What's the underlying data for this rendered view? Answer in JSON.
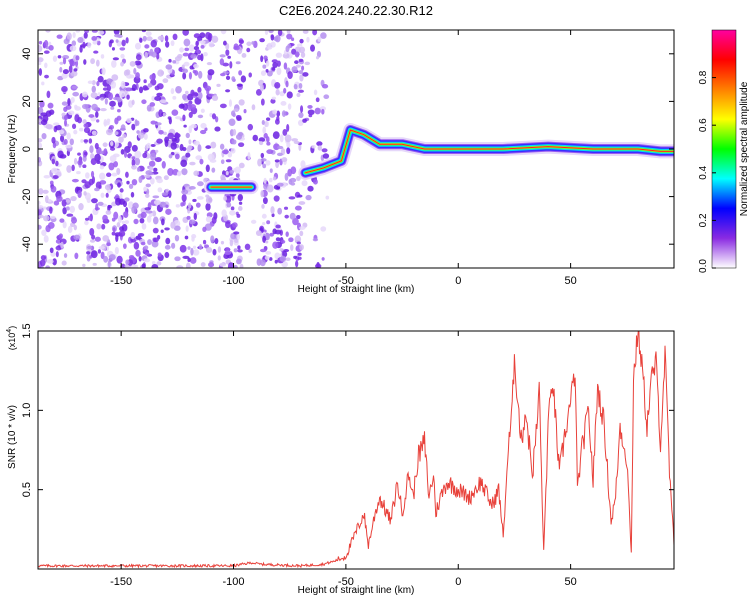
{
  "chart_data": [
    {
      "type": "heatmap",
      "title": "C2E6.2024.240.22.30.R12",
      "xlabel": "Height of straight line (km)",
      "ylabel": "Frequency (Hz)",
      "xlim": [
        -187,
        96
      ],
      "ylim": [
        -50,
        50
      ],
      "xticks": [
        -150,
        -100,
        -50,
        0,
        50
      ],
      "yticks": [
        -40,
        -20,
        0,
        20,
        40
      ],
      "grid": false,
      "noise_region_x": [
        -187,
        -68
      ],
      "noise_gap_x": [
        -96,
        -88
      ],
      "signal_track": [
        {
          "x": -110,
          "y": -16
        },
        {
          "x": -100,
          "y": -16
        },
        {
          "x": -92,
          "y": -16
        },
        {
          "x": -68,
          "y": -10
        },
        {
          "x": -60,
          "y": -8
        },
        {
          "x": -52,
          "y": -5
        },
        {
          "x": -48,
          "y": 8
        },
        {
          "x": -42,
          "y": 6
        },
        {
          "x": -35,
          "y": 2
        },
        {
          "x": -25,
          "y": 2
        },
        {
          "x": -15,
          "y": 0
        },
        {
          "x": 0,
          "y": 0
        },
        {
          "x": 20,
          "y": 0
        },
        {
          "x": 40,
          "y": 1
        },
        {
          "x": 60,
          "y": 0
        },
        {
          "x": 80,
          "y": 0
        },
        {
          "x": 90,
          "y": -1
        },
        {
          "x": 96,
          "y": -1
        }
      ],
      "colorbar": {
        "label": "Normalized spectral amplitude",
        "range": [
          0,
          1
        ],
        "ticks": [
          "0.0",
          "0.2",
          "0.4",
          "0.6",
          "0.8"
        ],
        "colors": [
          "#ffffff",
          "#8a2be2",
          "#0000ff",
          "#00ffff",
          "#00ff00",
          "#ffff00",
          "#ff8000",
          "#ff0000",
          "#ff00a0"
        ]
      }
    },
    {
      "type": "line",
      "xlabel": "Height of straight line (km)",
      "ylabel": "SNR (10 * v/v)",
      "y_multiplier": "(x10",
      "y_multiplier_exp": "4",
      "y_multiplier_close": ")",
      "xlim": [
        -187,
        96
      ],
      "ylim": [
        0,
        1.5
      ],
      "xticks": [
        -150,
        -100,
        -50,
        0,
        50
      ],
      "yticks": [
        "0.5",
        "1.0",
        "1.5"
      ],
      "color": "#e8413a",
      "grid": false,
      "x": [
        -187,
        -140,
        -100,
        -92,
        -88,
        -70,
        -60,
        -55,
        -50,
        -45,
        -42,
        -40,
        -37,
        -35,
        -30,
        -27,
        -25,
        -22,
        -20,
        -18,
        -15,
        -13,
        -11,
        -10,
        -8,
        -5,
        0,
        5,
        10,
        15,
        18,
        20,
        22,
        24,
        25,
        26,
        28,
        30,
        33,
        35,
        36,
        38,
        40,
        42,
        45,
        48,
        50,
        52,
        53,
        55,
        58,
        60,
        62,
        65,
        68,
        70,
        72,
        75,
        77,
        78,
        80,
        82,
        84,
        86,
        88,
        90,
        92,
        94,
        96
      ],
      "y": [
        0.02,
        0.02,
        0.02,
        0.04,
        0.03,
        0.02,
        0.03,
        0.05,
        0.08,
        0.25,
        0.35,
        0.15,
        0.35,
        0.45,
        0.3,
        0.55,
        0.35,
        0.6,
        0.45,
        0.7,
        0.8,
        0.45,
        0.6,
        0.35,
        0.45,
        0.55,
        0.5,
        0.45,
        0.55,
        0.4,
        0.5,
        0.2,
        0.7,
        1.0,
        1.35,
        1.15,
        0.8,
        1.0,
        0.6,
        0.9,
        1.15,
        0.1,
        0.9,
        1.2,
        0.6,
        0.9,
        1.05,
        1.25,
        0.5,
        0.75,
        1.0,
        0.55,
        1.15,
        0.9,
        0.3,
        0.45,
        0.9,
        0.7,
        0.1,
        1.2,
        1.5,
        1.25,
        0.9,
        1.2,
        1.3,
        0.8,
        1.35,
        0.6,
        0.15
      ]
    }
  ]
}
